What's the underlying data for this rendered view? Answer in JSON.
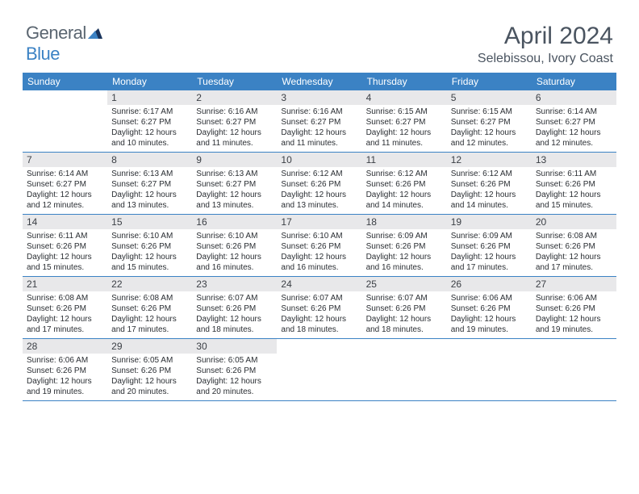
{
  "brand": {
    "part1": "General",
    "part2": "Blue"
  },
  "title": "April 2024",
  "location": "Selebissou, Ivory Coast",
  "dayNames": [
    "Sunday",
    "Monday",
    "Tuesday",
    "Wednesday",
    "Thursday",
    "Friday",
    "Saturday"
  ],
  "colors": {
    "header_bg": "#3b82c4",
    "header_text": "#ffffff",
    "daynum_bg": "#e8e8ea",
    "body_text": "#2a2e33",
    "title_text": "#4a5460",
    "logo_grey": "#5a6570",
    "logo_accent": "#3b82c4",
    "week_border": "#3b82c4"
  },
  "fonts": {
    "title_size_pt": 22,
    "location_size_pt": 12,
    "dayheader_size_pt": 9,
    "daynum_size_pt": 9,
    "body_size_pt": 7.5
  },
  "layout": {
    "cols": 7,
    "rows": 5,
    "first_weekday_offset": 1
  },
  "weeks": [
    [
      null,
      {
        "n": "1",
        "sunrise": "6:17 AM",
        "sunset": "6:27 PM",
        "daylight": "12 hours and 10 minutes."
      },
      {
        "n": "2",
        "sunrise": "6:16 AM",
        "sunset": "6:27 PM",
        "daylight": "12 hours and 11 minutes."
      },
      {
        "n": "3",
        "sunrise": "6:16 AM",
        "sunset": "6:27 PM",
        "daylight": "12 hours and 11 minutes."
      },
      {
        "n": "4",
        "sunrise": "6:15 AM",
        "sunset": "6:27 PM",
        "daylight": "12 hours and 11 minutes."
      },
      {
        "n": "5",
        "sunrise": "6:15 AM",
        "sunset": "6:27 PM",
        "daylight": "12 hours and 12 minutes."
      },
      {
        "n": "6",
        "sunrise": "6:14 AM",
        "sunset": "6:27 PM",
        "daylight": "12 hours and 12 minutes."
      }
    ],
    [
      {
        "n": "7",
        "sunrise": "6:14 AM",
        "sunset": "6:27 PM",
        "daylight": "12 hours and 12 minutes."
      },
      {
        "n": "8",
        "sunrise": "6:13 AM",
        "sunset": "6:27 PM",
        "daylight": "12 hours and 13 minutes."
      },
      {
        "n": "9",
        "sunrise": "6:13 AM",
        "sunset": "6:27 PM",
        "daylight": "12 hours and 13 minutes."
      },
      {
        "n": "10",
        "sunrise": "6:12 AM",
        "sunset": "6:26 PM",
        "daylight": "12 hours and 13 minutes."
      },
      {
        "n": "11",
        "sunrise": "6:12 AM",
        "sunset": "6:26 PM",
        "daylight": "12 hours and 14 minutes."
      },
      {
        "n": "12",
        "sunrise": "6:12 AM",
        "sunset": "6:26 PM",
        "daylight": "12 hours and 14 minutes."
      },
      {
        "n": "13",
        "sunrise": "6:11 AM",
        "sunset": "6:26 PM",
        "daylight": "12 hours and 15 minutes."
      }
    ],
    [
      {
        "n": "14",
        "sunrise": "6:11 AM",
        "sunset": "6:26 PM",
        "daylight": "12 hours and 15 minutes."
      },
      {
        "n": "15",
        "sunrise": "6:10 AM",
        "sunset": "6:26 PM",
        "daylight": "12 hours and 15 minutes."
      },
      {
        "n": "16",
        "sunrise": "6:10 AM",
        "sunset": "6:26 PM",
        "daylight": "12 hours and 16 minutes."
      },
      {
        "n": "17",
        "sunrise": "6:10 AM",
        "sunset": "6:26 PM",
        "daylight": "12 hours and 16 minutes."
      },
      {
        "n": "18",
        "sunrise": "6:09 AM",
        "sunset": "6:26 PM",
        "daylight": "12 hours and 16 minutes."
      },
      {
        "n": "19",
        "sunrise": "6:09 AM",
        "sunset": "6:26 PM",
        "daylight": "12 hours and 17 minutes."
      },
      {
        "n": "20",
        "sunrise": "6:08 AM",
        "sunset": "6:26 PM",
        "daylight": "12 hours and 17 minutes."
      }
    ],
    [
      {
        "n": "21",
        "sunrise": "6:08 AM",
        "sunset": "6:26 PM",
        "daylight": "12 hours and 17 minutes."
      },
      {
        "n": "22",
        "sunrise": "6:08 AM",
        "sunset": "6:26 PM",
        "daylight": "12 hours and 17 minutes."
      },
      {
        "n": "23",
        "sunrise": "6:07 AM",
        "sunset": "6:26 PM",
        "daylight": "12 hours and 18 minutes."
      },
      {
        "n": "24",
        "sunrise": "6:07 AM",
        "sunset": "6:26 PM",
        "daylight": "12 hours and 18 minutes."
      },
      {
        "n": "25",
        "sunrise": "6:07 AM",
        "sunset": "6:26 PM",
        "daylight": "12 hours and 18 minutes."
      },
      {
        "n": "26",
        "sunrise": "6:06 AM",
        "sunset": "6:26 PM",
        "daylight": "12 hours and 19 minutes."
      },
      {
        "n": "27",
        "sunrise": "6:06 AM",
        "sunset": "6:26 PM",
        "daylight": "12 hours and 19 minutes."
      }
    ],
    [
      {
        "n": "28",
        "sunrise": "6:06 AM",
        "sunset": "6:26 PM",
        "daylight": "12 hours and 19 minutes."
      },
      {
        "n": "29",
        "sunrise": "6:05 AM",
        "sunset": "6:26 PM",
        "daylight": "12 hours and 20 minutes."
      },
      {
        "n": "30",
        "sunrise": "6:05 AM",
        "sunset": "6:26 PM",
        "daylight": "12 hours and 20 minutes."
      },
      null,
      null,
      null,
      null
    ]
  ],
  "labels": {
    "sunrise": "Sunrise:",
    "sunset": "Sunset:",
    "daylight": "Daylight:"
  }
}
